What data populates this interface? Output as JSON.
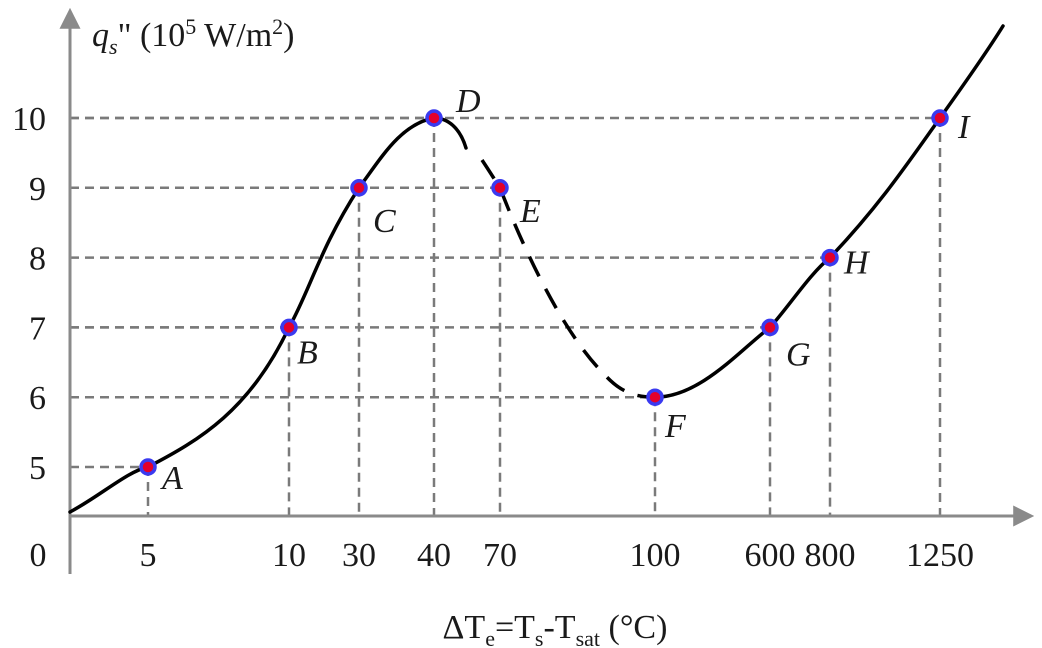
{
  "chart_data": {
    "type": "line",
    "title": "",
    "ylabel": {
      "q": "q",
      "s": "s",
      "mid": "\" (10",
      "five": "5",
      "unit": " W/m",
      "two": "2",
      "close": ")"
    },
    "xlabel": {
      "delta": "ΔT",
      "e": "e",
      "eq": "=T",
      "s": "s",
      "minus": "-T",
      "sat": "sat",
      "unit": " (°C)"
    },
    "origin_label": "0",
    "x_ticks": [
      "5",
      "10",
      "30",
      "40",
      "70",
      "100",
      "600",
      "800",
      "1250"
    ],
    "y_ticks": [
      "5",
      "6",
      "7",
      "8",
      "9",
      "10"
    ],
    "ylim": [
      4.3,
      11
    ],
    "points": [
      {
        "label": "A",
        "x": 5,
        "y": 5
      },
      {
        "label": "B",
        "x": 10,
        "y": 7
      },
      {
        "label": "C",
        "x": 30,
        "y": 9
      },
      {
        "label": "D",
        "x": 40,
        "y": 10
      },
      {
        "label": "E",
        "x": 70,
        "y": 9
      },
      {
        "label": "F",
        "x": 100,
        "y": 6
      },
      {
        "label": "G",
        "x": 600,
        "y": 7
      },
      {
        "label": "H",
        "x": 800,
        "y": 8
      },
      {
        "label": "I",
        "x": 1250,
        "y": 10
      }
    ],
    "dashed_segment": [
      "D",
      "F"
    ],
    "colors": {
      "curve": "#000000",
      "axis": "#8a8a8a",
      "guide": "#7a7a7a",
      "marker_fill": "#e3002b",
      "marker_edge": "#3a3af0"
    }
  }
}
